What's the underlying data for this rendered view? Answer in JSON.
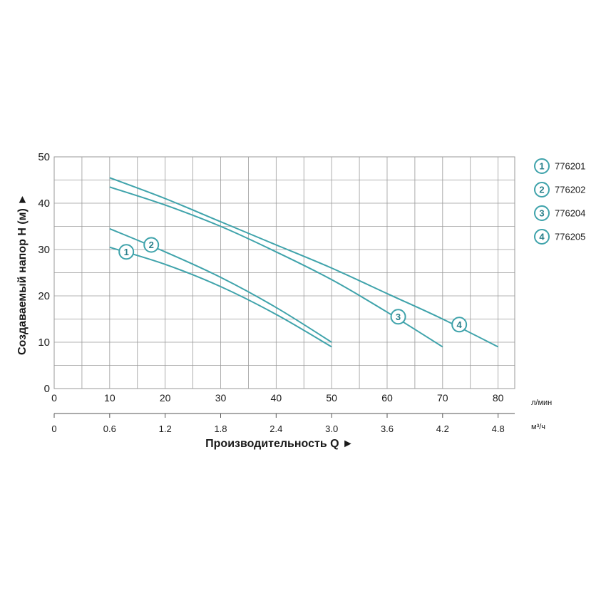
{
  "chart_data": {
    "type": "line",
    "ylabel": "Создаваемый напор H (м) ►",
    "xlabel": "Производительность Q ►",
    "x_unit": "л/мин",
    "x2_unit": "м³/ч",
    "xlim": [
      0,
      83
    ],
    "ylim": [
      0,
      50
    ],
    "y_ticks": [
      "0",
      "10",
      "20",
      "30",
      "40",
      "50"
    ],
    "x_ticks": [
      "0",
      "10",
      "20",
      "30",
      "40",
      "50",
      "60",
      "70",
      "80"
    ],
    "x2_ticks": [
      "0",
      "0.6",
      "1.2",
      "1.8",
      "2.4",
      "3.0",
      "3.6",
      "4.2",
      "4.8"
    ],
    "grid": true,
    "line_color": "#3fa3ab",
    "series": [
      {
        "name": "776201",
        "marker": "1",
        "marker_at": [
          13,
          29.5
        ],
        "points": [
          [
            10,
            30.5
          ],
          [
            20,
            26.8
          ],
          [
            30,
            22
          ],
          [
            40,
            16
          ],
          [
            50,
            9
          ]
        ]
      },
      {
        "name": "776202",
        "marker": "2",
        "marker_at": [
          17.5,
          31
        ],
        "points": [
          [
            10,
            34.5
          ],
          [
            20,
            29.5
          ],
          [
            30,
            24
          ],
          [
            40,
            17.5
          ],
          [
            50,
            10
          ]
        ]
      },
      {
        "name": "776204",
        "marker": "3",
        "marker_at": [
          62,
          15.5
        ],
        "points": [
          [
            10,
            43.5
          ],
          [
            20,
            39.6
          ],
          [
            30,
            35
          ],
          [
            40,
            29.5
          ],
          [
            50,
            23.5
          ],
          [
            60,
            16.5
          ],
          [
            70,
            9
          ]
        ]
      },
      {
        "name": "776205",
        "marker": "4",
        "marker_at": [
          73,
          13.8
        ],
        "points": [
          [
            10,
            45.5
          ],
          [
            20,
            41
          ],
          [
            30,
            36
          ],
          [
            40,
            31
          ],
          [
            50,
            26
          ],
          [
            60,
            20.5
          ],
          [
            70,
            15
          ],
          [
            80,
            9
          ]
        ]
      }
    ]
  }
}
